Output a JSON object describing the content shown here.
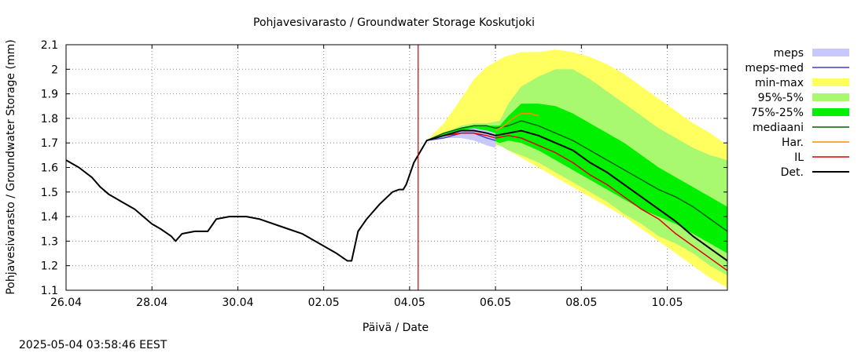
{
  "timestamp": "2025-05-04 03:58:46 EEST",
  "chart_data": {
    "type": "line",
    "title": "Pohjavesivarasto / Groundwater Storage   Koskutjoki",
    "xlabel": "Päivä / Date",
    "ylabel": "Pohjavesivarasto / Groundwater Storage (mm)",
    "xlim": [
      0,
      15.4
    ],
    "ylim": [
      1.1,
      2.1
    ],
    "x_ticks": [
      {
        "x": 0,
        "label": "26.04"
      },
      {
        "x": 2,
        "label": "28.04"
      },
      {
        "x": 4,
        "label": "30.04"
      },
      {
        "x": 6,
        "label": "02.05"
      },
      {
        "x": 8,
        "label": "04.05"
      },
      {
        "x": 10,
        "label": "06.05"
      },
      {
        "x": 12,
        "label": "08.05"
      },
      {
        "x": 14,
        "label": "10.05"
      }
    ],
    "y_ticks": [
      "1.1",
      "1.2",
      "1.3",
      "1.4",
      "1.5",
      "1.6",
      "1.7",
      "1.8",
      "1.9",
      "2",
      "2.1"
    ],
    "grid": true,
    "legend_position": "right",
    "forecast_start_x": 8.2,
    "bands": [
      {
        "name": "min-max",
        "color": "#ffff60",
        "x": [
          8.4,
          8.8,
          9.2,
          9.5,
          9.8,
          10.2,
          10.6,
          11.0,
          11.4,
          11.8,
          12.2,
          12.6,
          13.0,
          13.4,
          13.8,
          14.2,
          14.6,
          15.0,
          15.4
        ],
        "upper": [
          1.71,
          1.78,
          1.88,
          1.96,
          2.01,
          2.05,
          2.07,
          2.07,
          2.08,
          2.07,
          2.05,
          2.02,
          1.98,
          1.93,
          1.88,
          1.83,
          1.78,
          1.74,
          1.69
        ],
        "lower": [
          1.71,
          1.72,
          1.73,
          1.72,
          1.71,
          1.68,
          1.64,
          1.6,
          1.56,
          1.52,
          1.48,
          1.44,
          1.4,
          1.35,
          1.3,
          1.25,
          1.2,
          1.15,
          1.11
        ]
      },
      {
        "name": "95%-5%",
        "color": "#a8f870",
        "x": [
          8.4,
          8.8,
          9.2,
          9.5,
          9.8,
          10.1,
          10.3,
          10.6,
          11.0,
          11.4,
          11.8,
          12.2,
          12.6,
          13.0,
          13.4,
          13.8,
          14.2,
          14.6,
          15.0,
          15.4
        ],
        "upper": [
          1.71,
          1.74,
          1.77,
          1.78,
          1.78,
          1.79,
          1.86,
          1.93,
          1.97,
          2.0,
          2.0,
          1.96,
          1.91,
          1.86,
          1.81,
          1.76,
          1.72,
          1.68,
          1.65,
          1.63
        ],
        "lower": [
          1.71,
          1.72,
          1.73,
          1.72,
          1.7,
          1.69,
          1.67,
          1.65,
          1.62,
          1.58,
          1.54,
          1.5,
          1.46,
          1.41,
          1.37,
          1.32,
          1.29,
          1.25,
          1.2,
          1.16
        ]
      },
      {
        "name": "75%-25%",
        "color": "#00f000",
        "x": [
          8.4,
          8.8,
          9.2,
          9.5,
          9.8,
          10.1,
          10.3,
          10.6,
          11.0,
          11.4,
          11.8,
          12.2,
          12.6,
          13.0,
          13.4,
          13.8,
          14.2,
          14.6,
          15.0,
          15.4
        ],
        "upper": [
          1.71,
          1.74,
          1.76,
          1.77,
          1.77,
          1.77,
          1.81,
          1.86,
          1.86,
          1.85,
          1.82,
          1.78,
          1.74,
          1.7,
          1.65,
          1.6,
          1.56,
          1.52,
          1.48,
          1.44
        ],
        "lower": [
          1.71,
          1.72,
          1.73,
          1.73,
          1.72,
          1.7,
          1.71,
          1.7,
          1.67,
          1.63,
          1.59,
          1.55,
          1.51,
          1.47,
          1.43,
          1.4,
          1.37,
          1.33,
          1.29,
          1.25
        ]
      },
      {
        "name": "meps",
        "color": "#c8c8ff",
        "x": [
          8.4,
          8.8,
          9.2,
          9.5,
          9.8,
          10.0
        ],
        "upper": [
          1.71,
          1.73,
          1.75,
          1.76,
          1.75,
          1.74
        ],
        "lower": [
          1.71,
          1.72,
          1.72,
          1.71,
          1.69,
          1.68
        ]
      }
    ],
    "series": [
      {
        "name": "meps-med",
        "color": "#4040c0",
        "x": [
          8.4,
          8.8,
          9.2,
          9.5,
          9.8,
          10.0
        ],
        "y": [
          1.71,
          1.72,
          1.74,
          1.74,
          1.72,
          1.71
        ]
      },
      {
        "name": "mediaani",
        "color": "#006000",
        "x": [
          8.4,
          8.8,
          9.2,
          9.5,
          9.8,
          10.0,
          10.3,
          10.6,
          11.0,
          11.4,
          11.8,
          12.2,
          12.6,
          13.0,
          13.4,
          13.8,
          14.2,
          14.6,
          15.0,
          15.4
        ],
        "y": [
          1.71,
          1.74,
          1.76,
          1.77,
          1.77,
          1.76,
          1.77,
          1.79,
          1.77,
          1.74,
          1.71,
          1.67,
          1.63,
          1.59,
          1.55,
          1.51,
          1.48,
          1.44,
          1.39,
          1.34
        ]
      },
      {
        "name": "Har.",
        "color": "#ff8c00",
        "x": [
          10.0,
          10.2,
          10.4,
          10.6,
          10.8,
          11.0
        ],
        "y": [
          1.75,
          1.77,
          1.8,
          1.82,
          1.82,
          1.81
        ]
      },
      {
        "name": "IL",
        "color": "#e00000",
        "x": [
          8.4,
          8.8,
          9.2,
          9.5,
          9.8,
          10.0,
          10.3,
          10.6,
          11.0,
          11.4,
          11.8,
          12.2,
          12.6,
          13.0,
          13.4,
          13.8,
          14.2,
          14.6,
          15.0,
          15.4
        ],
        "y": [
          1.71,
          1.73,
          1.74,
          1.74,
          1.73,
          1.72,
          1.73,
          1.72,
          1.69,
          1.66,
          1.62,
          1.57,
          1.53,
          1.48,
          1.43,
          1.39,
          1.33,
          1.28,
          1.23,
          1.18
        ]
      },
      {
        "name": "Det.",
        "color": "#000000",
        "x": [
          0.0,
          0.3,
          0.6,
          0.8,
          1.0,
          1.3,
          1.6,
          1.8,
          2.0,
          2.2,
          2.45,
          2.55,
          2.7,
          3.0,
          3.3,
          3.5,
          3.8,
          4.0,
          4.2,
          4.5,
          5.0,
          5.5,
          6.0,
          6.3,
          6.55,
          6.65,
          6.8,
          7.0,
          7.3,
          7.6,
          7.75,
          7.85,
          7.92,
          8.1,
          8.4,
          8.8,
          9.2,
          9.5,
          9.8,
          10.0,
          10.3,
          10.6,
          11.0,
          11.4,
          11.8,
          12.2,
          12.6,
          13.0,
          13.4,
          13.8,
          14.2,
          14.6,
          15.0,
          15.4
        ],
        "y": [
          1.63,
          1.6,
          1.56,
          1.52,
          1.49,
          1.46,
          1.43,
          1.4,
          1.37,
          1.35,
          1.32,
          1.3,
          1.33,
          1.34,
          1.34,
          1.39,
          1.4,
          1.4,
          1.4,
          1.39,
          1.36,
          1.33,
          1.28,
          1.25,
          1.22,
          1.22,
          1.34,
          1.39,
          1.45,
          1.5,
          1.51,
          1.51,
          1.53,
          1.62,
          1.71,
          1.73,
          1.75,
          1.75,
          1.74,
          1.73,
          1.74,
          1.75,
          1.73,
          1.7,
          1.67,
          1.62,
          1.58,
          1.53,
          1.48,
          1.43,
          1.38,
          1.32,
          1.27,
          1.22
        ]
      }
    ],
    "legend": [
      {
        "name": "meps",
        "style": "band",
        "color": "#c8c8ff"
      },
      {
        "name": "meps-med",
        "style": "line",
        "color": "#4040c0"
      },
      {
        "name": "min-max",
        "style": "band",
        "color": "#ffff60"
      },
      {
        "name": "95%-5%",
        "style": "band",
        "color": "#a8f870"
      },
      {
        "name": "75%-25%",
        "style": "band",
        "color": "#00f000"
      },
      {
        "name": "mediaani",
        "style": "line",
        "color": "#006000"
      },
      {
        "name": "Har.",
        "style": "line",
        "color": "#ff8c00"
      },
      {
        "name": "IL",
        "style": "line",
        "color": "#e00000"
      },
      {
        "name": "Det.",
        "style": "line",
        "color": "#000000"
      }
    ]
  }
}
